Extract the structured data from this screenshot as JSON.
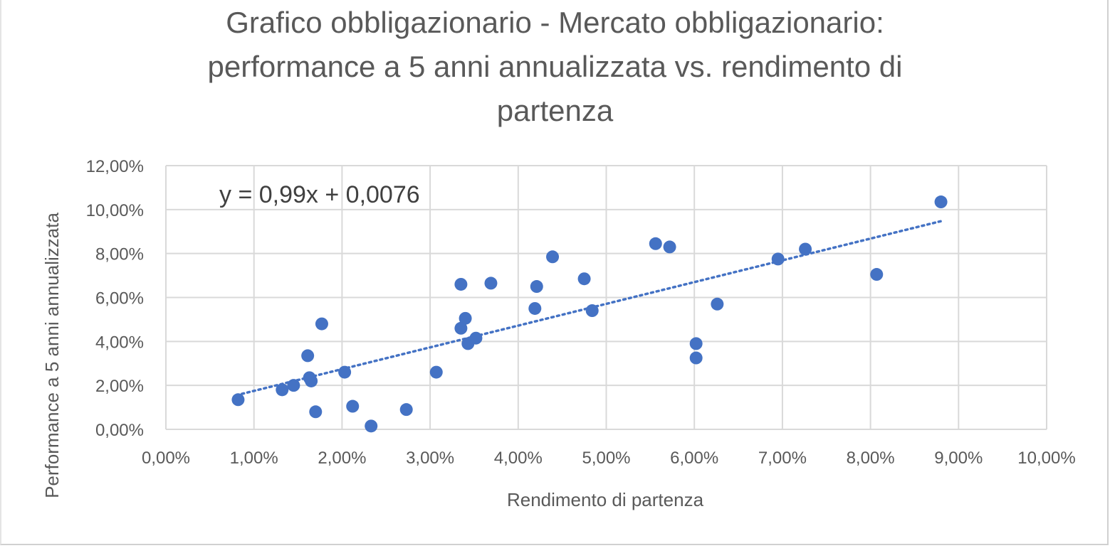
{
  "chart_data": {
    "type": "scatter",
    "title_lines": [
      "Grafico obbligazionario - Mercato obbligazionario:",
      "performance a 5 anni annualizzata vs. rendimento di",
      "partenza"
    ],
    "xlabel": "Rendimento  di partenza",
    "ylabel": "Performance a 5 anni annualizzata",
    "xlim": [
      0,
      0.1
    ],
    "ylim": [
      0,
      0.12
    ],
    "x_ticks": [
      0,
      0.01,
      0.02,
      0.03,
      0.04,
      0.05,
      0.06,
      0.07,
      0.08,
      0.09,
      0.1
    ],
    "x_tick_labels": [
      "0,00%",
      "1,00%",
      "2,00%",
      "3,00%",
      "4,00%",
      "5,00%",
      "6,00%",
      "7,00%",
      "8,00%",
      "9,00%",
      "10,00%"
    ],
    "y_ticks": [
      0,
      0.02,
      0.04,
      0.06,
      0.08,
      0.1,
      0.12
    ],
    "y_tick_labels": [
      "0,00%",
      "2,00%",
      "4,00%",
      "6,00%",
      "8,00%",
      "10,00%",
      "12,00%"
    ],
    "grid": true,
    "marker_color": "#4472c4",
    "trendline": {
      "slope": 0.99,
      "intercept": 0.0076,
      "x_range": [
        0.008,
        0.088
      ],
      "equation": "y = 0,99x + 0,0076",
      "style": "dotted",
      "color": "#4472c4"
    },
    "points": [
      {
        "x": 0.0082,
        "y": 0.0135
      },
      {
        "x": 0.0132,
        "y": 0.018
      },
      {
        "x": 0.0145,
        "y": 0.02
      },
      {
        "x": 0.0161,
        "y": 0.0335
      },
      {
        "x": 0.0163,
        "y": 0.0235
      },
      {
        "x": 0.0165,
        "y": 0.022
      },
      {
        "x": 0.017,
        "y": 0.008
      },
      {
        "x": 0.0177,
        "y": 0.048
      },
      {
        "x": 0.0203,
        "y": 0.026
      },
      {
        "x": 0.0212,
        "y": 0.0105
      },
      {
        "x": 0.0233,
        "y": 0.0015
      },
      {
        "x": 0.0273,
        "y": 0.009
      },
      {
        "x": 0.0307,
        "y": 0.026
      },
      {
        "x": 0.0335,
        "y": 0.066
      },
      {
        "x": 0.0335,
        "y": 0.046
      },
      {
        "x": 0.034,
        "y": 0.0505
      },
      {
        "x": 0.0343,
        "y": 0.039
      },
      {
        "x": 0.0352,
        "y": 0.0415
      },
      {
        "x": 0.0369,
        "y": 0.0665
      },
      {
        "x": 0.0419,
        "y": 0.055
      },
      {
        "x": 0.0421,
        "y": 0.065
      },
      {
        "x": 0.0439,
        "y": 0.0785
      },
      {
        "x": 0.0475,
        "y": 0.0685
      },
      {
        "x": 0.0484,
        "y": 0.054
      },
      {
        "x": 0.0556,
        "y": 0.0845
      },
      {
        "x": 0.0572,
        "y": 0.083
      },
      {
        "x": 0.0602,
        "y": 0.039
      },
      {
        "x": 0.0602,
        "y": 0.0325
      },
      {
        "x": 0.0626,
        "y": 0.057
      },
      {
        "x": 0.0695,
        "y": 0.0775
      },
      {
        "x": 0.0726,
        "y": 0.082
      },
      {
        "x": 0.0807,
        "y": 0.0705
      },
      {
        "x": 0.088,
        "y": 0.1035
      }
    ]
  }
}
